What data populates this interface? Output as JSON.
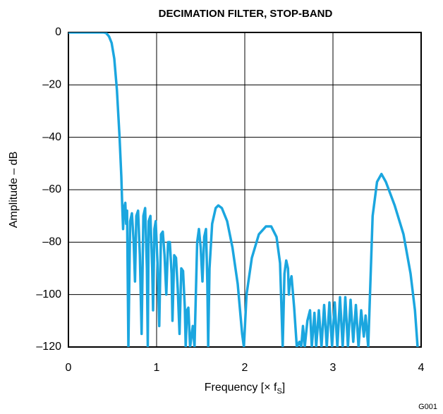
{
  "chart_data": {
    "type": "line",
    "title": "DECIMATION FILTER, STOP-BAND",
    "xlabel": [
      "Frequency [× f",
      "S",
      "]"
    ],
    "ylabel": "Amplitude – dB",
    "note": "G001",
    "color": "#1ba6df",
    "grid": true,
    "xlim": [
      0,
      4
    ],
    "xticks": [
      0,
      1,
      2,
      3,
      4
    ],
    "ylim": [
      -120,
      0
    ],
    "yticks": [
      0,
      {
        "value": -20,
        "label": "–20"
      },
      {
        "value": -40,
        "label": "–40"
      },
      {
        "value": -60,
        "label": "–60"
      },
      {
        "value": -80,
        "label": "–80"
      },
      {
        "value": -100,
        "label": "–100"
      },
      {
        "value": -120,
        "label": "–120"
      }
    ],
    "x": [
      0,
      0.1,
      0.2,
      0.3,
      0.4,
      0.43,
      0.46,
      0.49,
      0.52,
      0.55,
      0.58,
      0.6,
      0.61,
      0.62,
      0.63,
      0.645,
      0.655,
      0.665,
      0.68,
      0.7,
      0.72,
      0.74,
      0.755,
      0.77,
      0.79,
      0.81,
      0.83,
      0.85,
      0.87,
      0.89,
      0.9,
      0.91,
      0.93,
      0.95,
      0.96,
      0.975,
      0.99,
      1.01,
      1.03,
      1.05,
      1.07,
      1.09,
      1.11,
      1.13,
      1.15,
      1.17,
      1.18,
      1.2,
      1.22,
      1.24,
      1.26,
      1.28,
      1.3,
      1.32,
      1.33,
      1.345,
      1.36,
      1.38,
      1.41,
      1.43,
      1.445,
      1.46,
      1.48,
      1.5,
      1.52,
      1.54,
      1.56,
      1.575,
      1.585,
      1.6,
      1.63,
      1.67,
      1.7,
      1.74,
      1.8,
      1.86,
      1.92,
      1.97,
      1.99,
      2.02,
      2.08,
      2.16,
      2.24,
      2.3,
      2.36,
      2.4,
      2.43,
      2.45,
      2.47,
      2.49,
      2.5,
      2.51,
      2.53,
      2.56,
      2.59,
      2.62,
      2.64,
      2.66,
      2.68,
      2.71,
      2.74,
      2.76,
      2.79,
      2.81,
      2.84,
      2.87,
      2.9,
      2.93,
      2.96,
      2.99,
      3.02,
      3.05,
      3.08,
      3.11,
      3.14,
      3.17,
      3.2,
      3.23,
      3.26,
      3.29,
      3.32,
      3.35,
      3.37,
      3.4,
      3.42,
      3.45,
      3.5,
      3.55,
      3.6,
      3.7,
      3.8,
      3.88,
      3.93,
      3.96
    ],
    "values": [
      0,
      0,
      0,
      0,
      0,
      -0.3,
      -1.5,
      -4,
      -10,
      -22,
      -40,
      -55,
      -66,
      -75,
      -67,
      -65,
      -73,
      -68,
      -120,
      -72,
      -69,
      -80,
      -95,
      -70,
      -68,
      -85,
      -115,
      -70,
      -67,
      -90,
      -120,
      -72,
      -70,
      -90,
      -106,
      -75,
      -72,
      -88,
      -112,
      -77,
      -76,
      -85,
      -100,
      -80,
      -80,
      -92,
      -110,
      -85,
      -86,
      -98,
      -115,
      -90,
      -91,
      -105,
      -120,
      -106,
      -105,
      -120,
      -112,
      -120,
      -100,
      -80,
      -75,
      -82,
      -95,
      -78,
      -75,
      -95,
      -120,
      -90,
      -73,
      -67,
      -66,
      -67,
      -72,
      -82,
      -96,
      -115,
      -120,
      -100,
      -86,
      -77,
      -74,
      -74,
      -78,
      -88,
      -120,
      -92,
      -87,
      -90,
      -100,
      -96,
      -93,
      -105,
      -120,
      -118,
      -120,
      -112,
      -120,
      -110,
      -106,
      -120,
      -107,
      -120,
      -106,
      -120,
      -104,
      -120,
      -103,
      -120,
      -103,
      -120,
      -101,
      -120,
      -101,
      -120,
      -102,
      -118,
      -104,
      -120,
      -106,
      -116,
      -108,
      -120,
      -100,
      -70,
      -57,
      -54,
      -57,
      -66,
      -77,
      -92,
      -106,
      -120
    ]
  }
}
